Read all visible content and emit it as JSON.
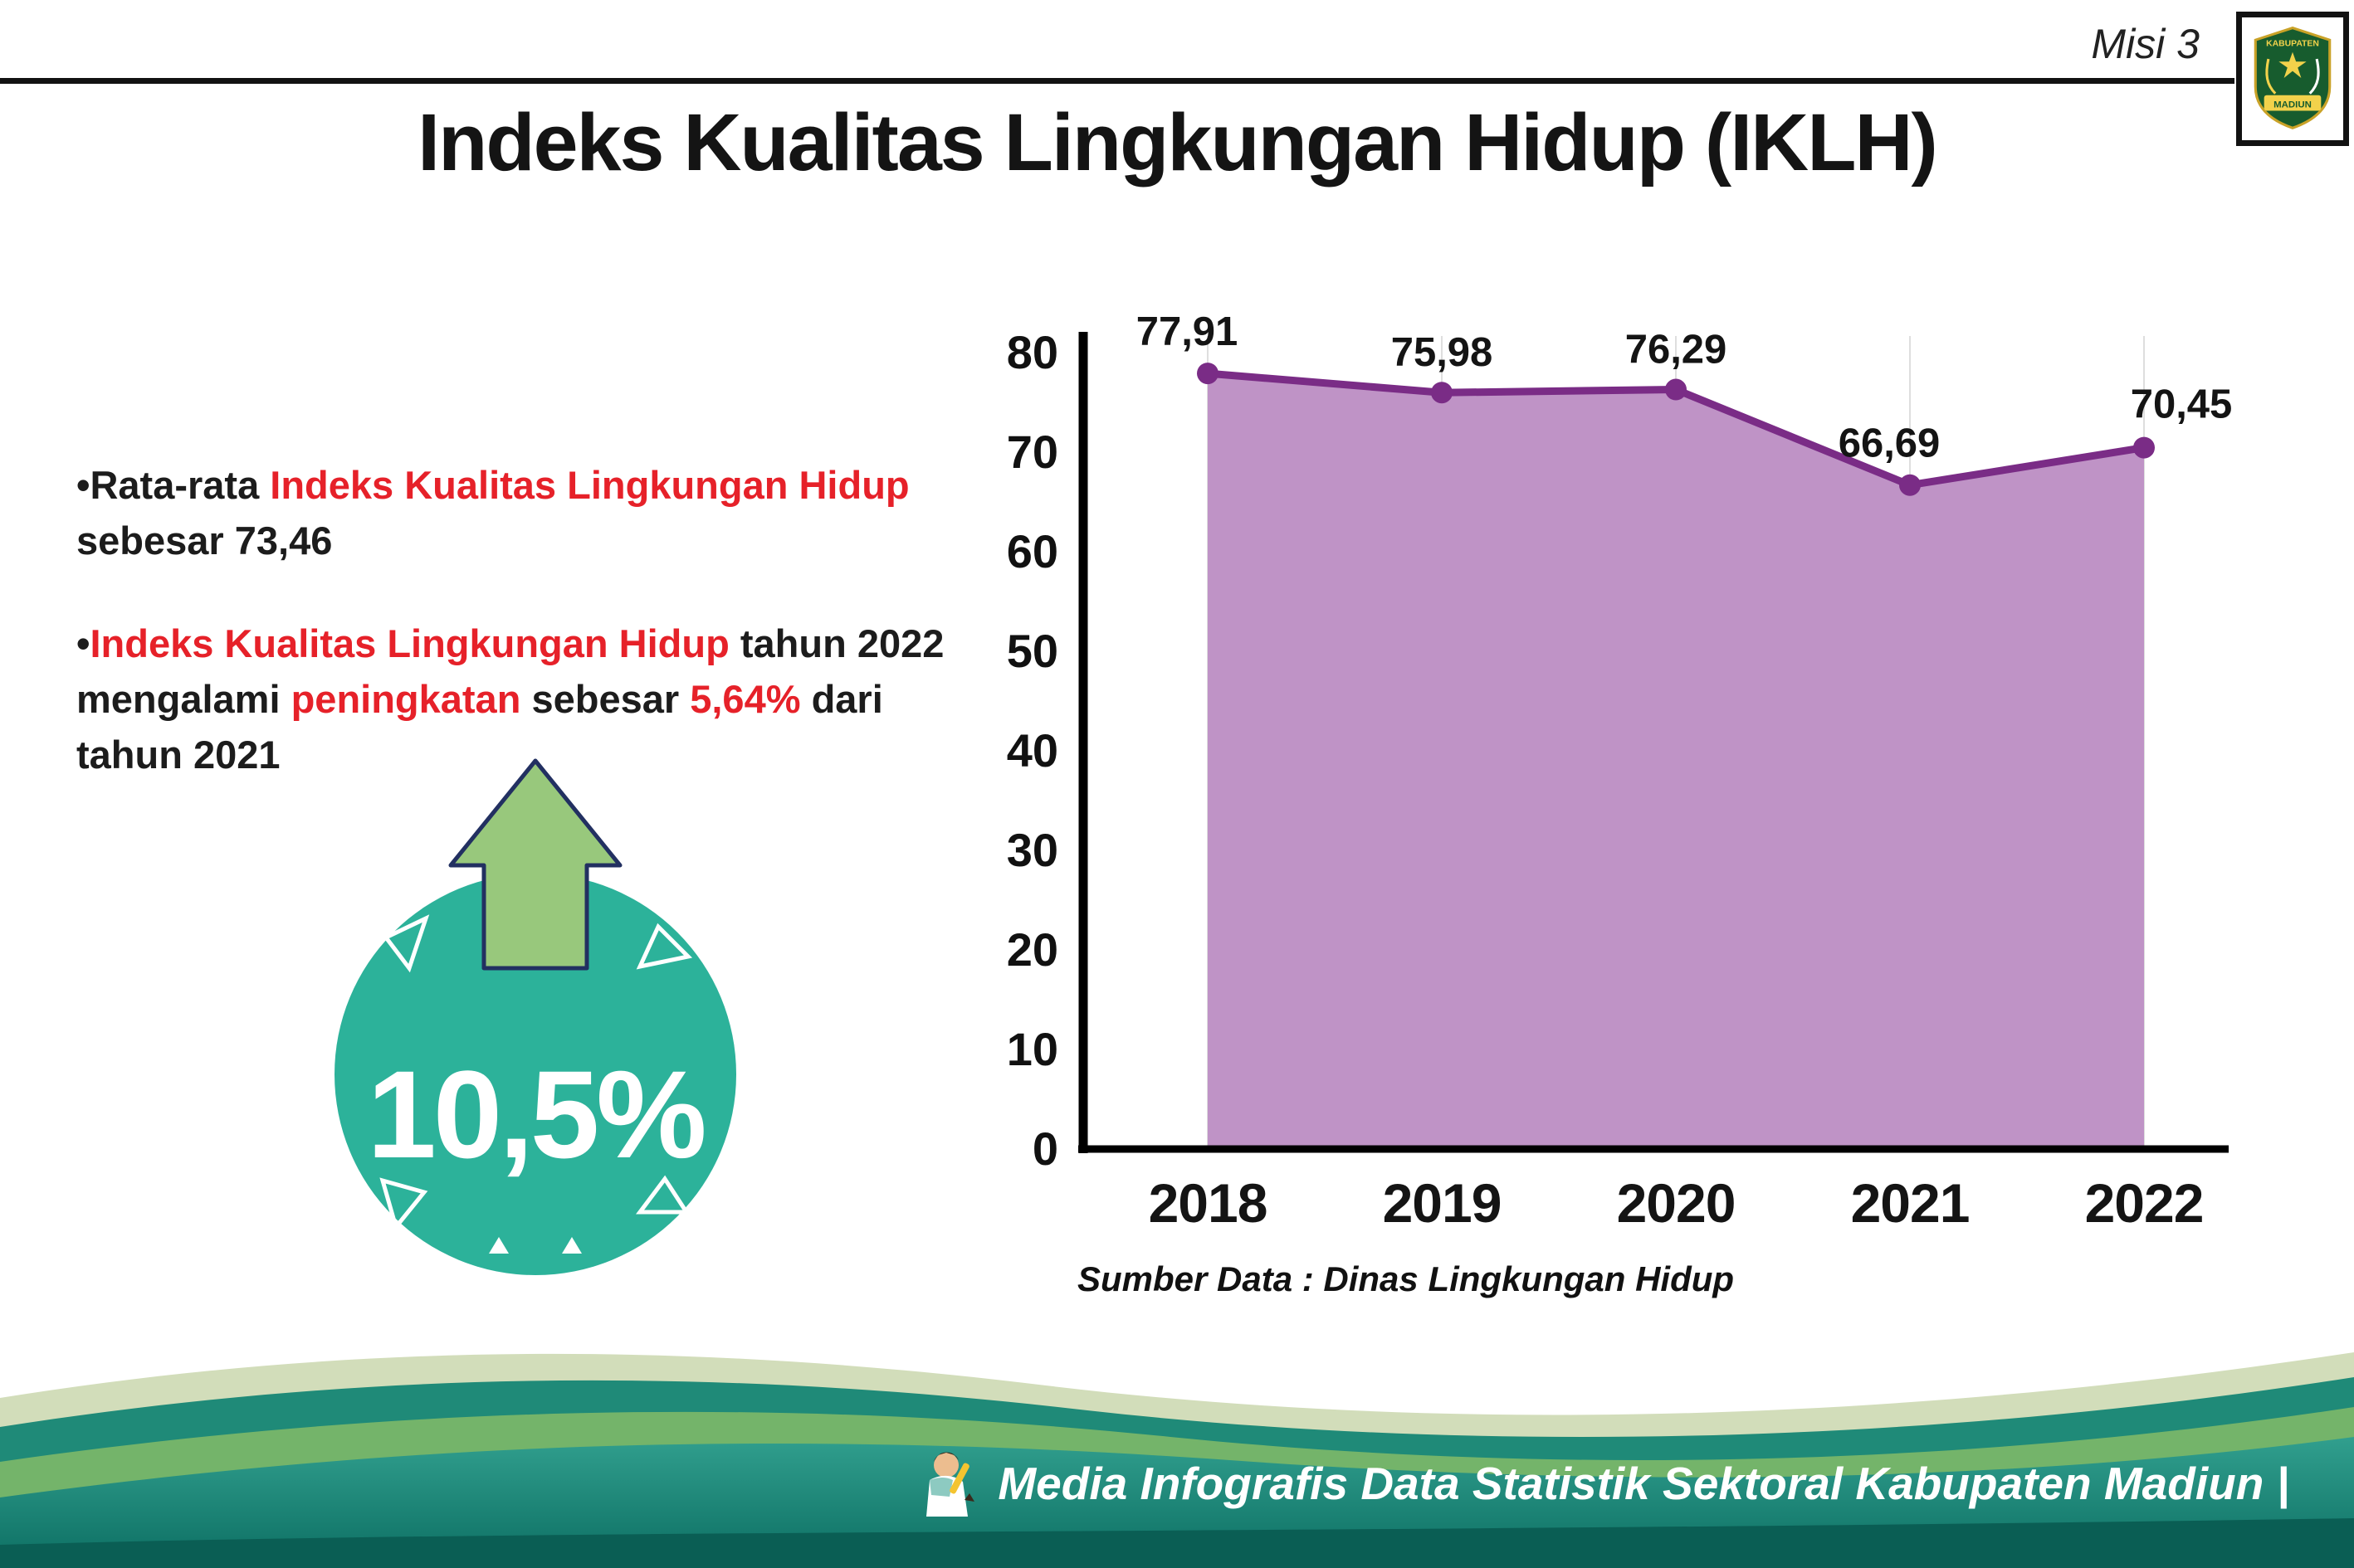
{
  "header": {
    "misi": "Misi 3",
    "title": "Indeks Kualitas Lingkungan Hidup (IKLH)"
  },
  "logo": {
    "text_top": "KABUPATEN",
    "text_bottom": "MADIUN"
  },
  "bullet_char": "•",
  "bullets": [
    {
      "segments": [
        {
          "text": "Rata-rata ",
          "color": "black"
        },
        {
          "text": "Indeks Kualitas Lingkungan Hidup",
          "color": "red"
        },
        {
          "text": " sebesar 73,46",
          "color": "black"
        }
      ]
    },
    {
      "segments": [
        {
          "text": "Indeks Kualitas Lingkungan Hidup",
          "color": "red"
        },
        {
          "text": " tahun 2022 mengalami ",
          "color": "black"
        },
        {
          "text": "peningkatan",
          "color": "red"
        },
        {
          "text": " sebesar ",
          "color": "black"
        },
        {
          "text": "5,64%",
          "color": "red"
        },
        {
          "text": " dari tahun 2021",
          "color": "black"
        }
      ]
    }
  ],
  "badge": {
    "value": "10,5%"
  },
  "colors": {
    "red": "#e62129",
    "teal": "#2cb29a",
    "arrow_green": "#98c87c",
    "arrow_outline": "#223061"
  },
  "chart_data": {
    "type": "area",
    "title": "Indeks Kualitas Lingkungan Hidup (IKLH)",
    "categories": [
      "2018",
      "2019",
      "2020",
      "2021",
      "2022"
    ],
    "values": [
      77.91,
      75.98,
      76.29,
      66.69,
      70.45
    ],
    "value_labels": [
      "77,91",
      "75,98",
      "76,29",
      "66,69",
      "70,45"
    ],
    "ylim": [
      0,
      80
    ],
    "yticks": [
      0,
      10,
      20,
      30,
      40,
      50,
      60,
      70,
      80
    ],
    "grid": "vertical-light",
    "legend": "none",
    "line_color": "#7a2c86",
    "fill_color": "#bf93c6",
    "source": "Sumber Data : Dinas Lingkungan Hidup"
  },
  "footer": {
    "text": "Media Infografis Data Statistik Sektoral Kabupaten Madiun |"
  }
}
